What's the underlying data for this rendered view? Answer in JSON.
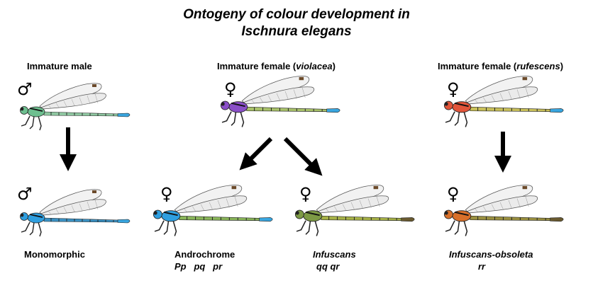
{
  "title": {
    "line1": "Ontogeny of colour development in",
    "line2": "Ischnura elegans"
  },
  "immature": {
    "male": {
      "label": "Immature male",
      "sex_symbol": "♂",
      "thorax": "#6dbf8f",
      "abdomen": "#8ec6a0",
      "tip": "#39a6e0"
    },
    "violacea": {
      "label_prefix": "Immature female (",
      "label_italic": "violacea",
      "label_suffix": ")",
      "sex_symbol": "♀",
      "thorax": "#8a4fc8",
      "abdomen": "#a9c26a",
      "tip": "#39a6e0"
    },
    "rufescens": {
      "label_prefix": "Immature female (",
      "label_italic": "rufescens",
      "label_suffix": ")",
      "sex_symbol": "♀",
      "thorax": "#e2553a",
      "abdomen": "#c9c05a",
      "tip": "#39a6e0"
    }
  },
  "adult": {
    "monomorphic": {
      "label": "Monomorphic",
      "sex_symbol": "♂",
      "thorax": "#2f9fe0",
      "abdomen": "#3a8fc0",
      "tip": "#39a6e0"
    },
    "androchrome": {
      "label": "Androchrome",
      "genotypes": "Pp   pq   pr",
      "sex_symbol": "♀",
      "thorax": "#2f9fe0",
      "abdomen": "#8ab65a",
      "tip": "#39a6e0"
    },
    "infuscans": {
      "label": "Infuscans",
      "genotypes": "qq qr",
      "sex_symbol": "♀",
      "thorax": "#7d9a45",
      "abdomen": "#a7b247",
      "tip": "#6a5a30"
    },
    "infuscans_obsoleta": {
      "label": "Infuscans-obsoleta",
      "genotypes": "rr",
      "sex_symbol": "♀",
      "thorax": "#d8702a",
      "abdomen": "#9a9040",
      "tip": "#6a5a30"
    }
  }
}
